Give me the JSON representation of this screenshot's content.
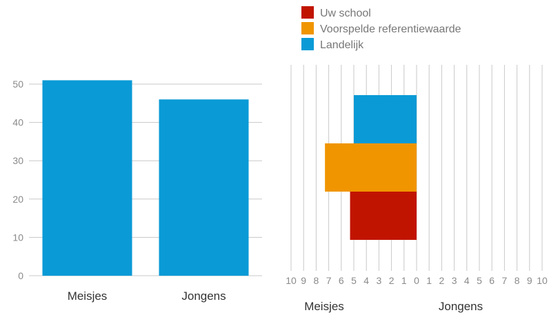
{
  "chart_data": [
    {
      "type": "bar",
      "categories": [
        "Meisjes",
        "Jongens"
      ],
      "values": [
        51,
        46
      ],
      "ylim": [
        0,
        50
      ],
      "yticks": [
        0,
        10,
        20,
        30,
        40,
        50
      ],
      "grid": true,
      "color": "#0a9ad6"
    },
    {
      "type": "bar",
      "orientation": "horizontal-diverging",
      "xticks_left": [
        "10",
        "9",
        "8",
        "7",
        "6",
        "5",
        "4",
        "3",
        "2",
        "1",
        "0"
      ],
      "xticks_right": [
        "1",
        "2",
        "3",
        "4",
        "5",
        "6",
        "7",
        "8",
        "9",
        "10"
      ],
      "side_labels": {
        "left": "Meisjes",
        "right": "Jongens"
      },
      "xlim": [
        -10,
        10
      ],
      "grid": true,
      "legend_position": "top",
      "series": [
        {
          "name": "Uw school",
          "color": "#c11400",
          "meisjes": 5.3,
          "jongens": 0
        },
        {
          "name": "Voorspelde referentiewaarde",
          "color": "#f09500",
          "meisjes": 7.3,
          "jongens": 0
        },
        {
          "name": "Landelijk",
          "color": "#0a9ad6",
          "meisjes": 5.0,
          "jongens": 0
        }
      ],
      "stack_order_bottom_to_top": [
        "Uw school",
        "Voorspelde referentiewaarde",
        "Landelijk"
      ]
    }
  ]
}
